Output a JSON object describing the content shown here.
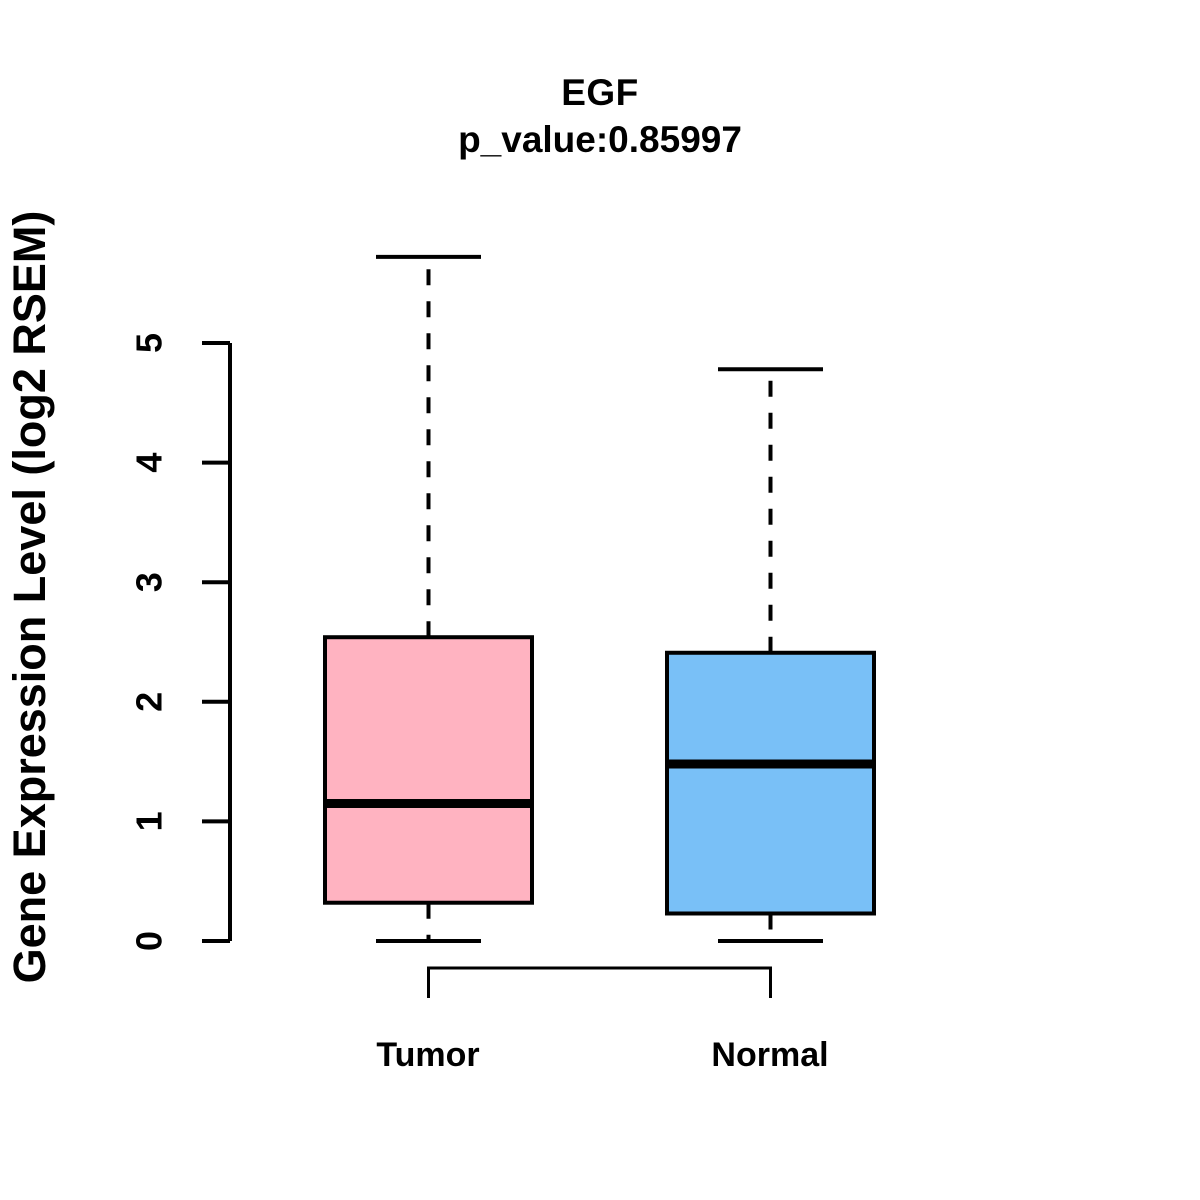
{
  "chart_data": {
    "type": "boxplot",
    "title": "EGF",
    "subtitle": "p_value:0.85997",
    "gene": "EGF",
    "p_value": 0.85997,
    "ylabel": "Gene Expression Level (log2 RSEM)",
    "xlabel": "",
    "yticks": [
      0,
      1,
      2,
      3,
      4,
      5
    ],
    "ylim": [
      0,
      5.8
    ],
    "grid": false,
    "legend_position": "none",
    "colors": {
      "background": "#FFFFFF",
      "axis": "#000000",
      "text": "#000000",
      "box_border": "#000000",
      "median_line": "#000000"
    },
    "groups": [
      {
        "label": "Tumor",
        "fill": "#FFB3C1",
        "whisker_low": 0,
        "q1": 0.32,
        "median": 1.15,
        "q3": 2.54,
        "whisker_high": 5.72
      },
      {
        "label": "Normal",
        "fill": "#79C0F7",
        "whisker_low": 0,
        "q1": 0.23,
        "median": 1.48,
        "q3": 2.41,
        "whisker_high": 4.78
      }
    ],
    "comparison_bracket": {
      "between": [
        "Tumor",
        "Normal"
      ]
    }
  }
}
